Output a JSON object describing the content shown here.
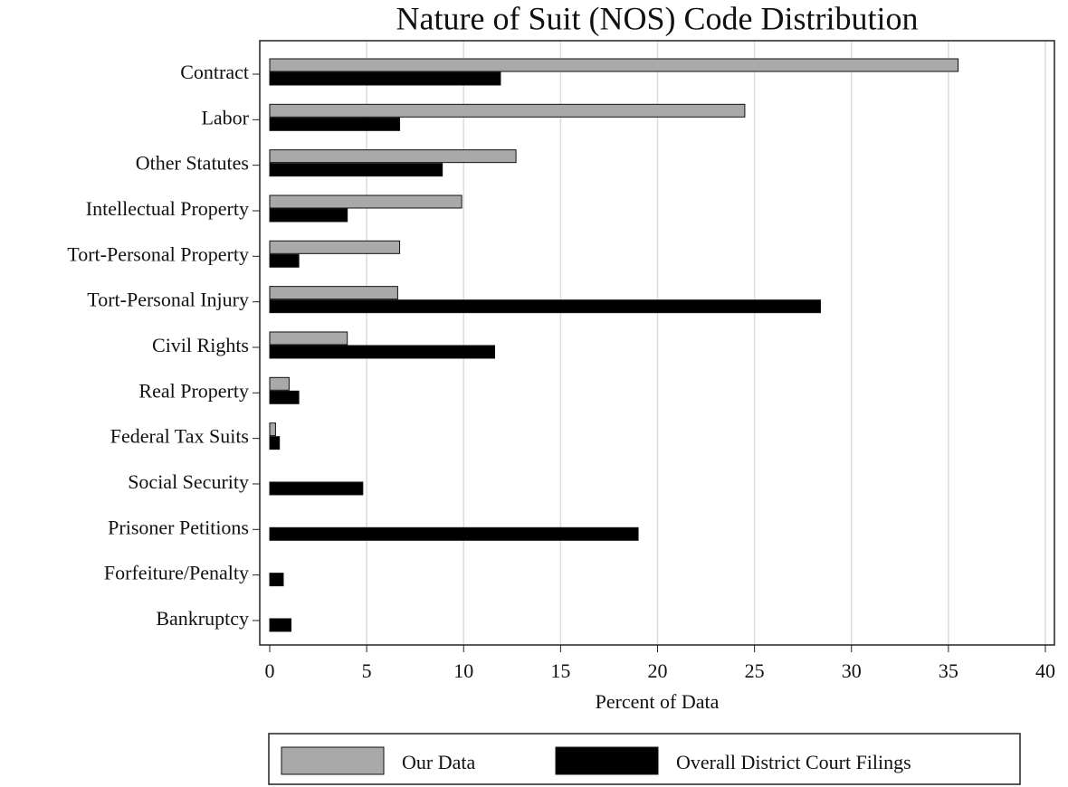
{
  "chart_data": {
    "type": "hbar",
    "title": "Nature of Suit (NOS) Code Distribution",
    "x_label": "Percent of Data",
    "categories": [
      "Contract",
      "Labor",
      "Other Statutes",
      "Intellectual Property",
      "Tort-Personal Property",
      "Tort-Personal Injury",
      "Civil Rights",
      "Real Property",
      "Federal Tax Suits",
      "Social Security",
      "Prisoner Petitions",
      "Forfeiture/Penalty",
      "Bankruptcy"
    ],
    "series": [
      {
        "name": "Our Data",
        "color": "#a9a9a9",
        "values": [
          35.5,
          24.5,
          12.7,
          9.9,
          6.7,
          6.6,
          4.0,
          1.0,
          0.3,
          0,
          0,
          0,
          0
        ]
      },
      {
        "name": "Overall District Court Filings",
        "color": "#000000",
        "values": [
          11.9,
          6.7,
          8.9,
          4.0,
          1.5,
          28.4,
          11.6,
          1.5,
          0.5,
          4.8,
          19.0,
          0.7,
          1.1
        ]
      }
    ],
    "xlim": [
      0,
      40
    ],
    "xticks": [
      0,
      5,
      10,
      15,
      20,
      25,
      30,
      35,
      40
    ],
    "grid": true,
    "legend": "bottom"
  }
}
